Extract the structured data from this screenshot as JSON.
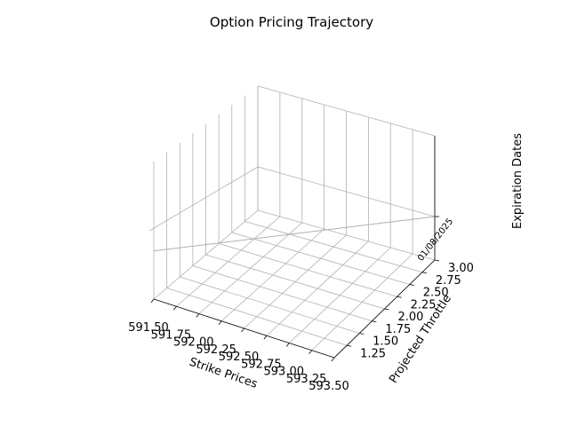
{
  "chart_data": {
    "type": "line",
    "title": "Option Pricing Trajectory",
    "xlabel": "Strike Prices",
    "ylabel": "Projected Throttle",
    "zlabel": "Expiration Dates",
    "xlim": [
      591.5,
      593.5
    ],
    "ylim": [
      1.0,
      3.0
    ],
    "x_ticks": [
      "591.50",
      "591.75",
      "592.00",
      "592.25",
      "592.50",
      "592.75",
      "593.00",
      "593.25",
      "593.50"
    ],
    "y_ticks": [
      "1.25",
      "1.50",
      "1.75",
      "2.00",
      "2.25",
      "2.50",
      "2.75",
      "3.00"
    ],
    "z_ticks": [
      "01/08/2025"
    ],
    "grid": true,
    "series": [
      {
        "x": [
          591.5,
          593.5
        ],
        "y": [
          1.0,
          3.0
        ],
        "z": [
          "01/08/2025",
          "01/08/2025"
        ]
      }
    ]
  }
}
